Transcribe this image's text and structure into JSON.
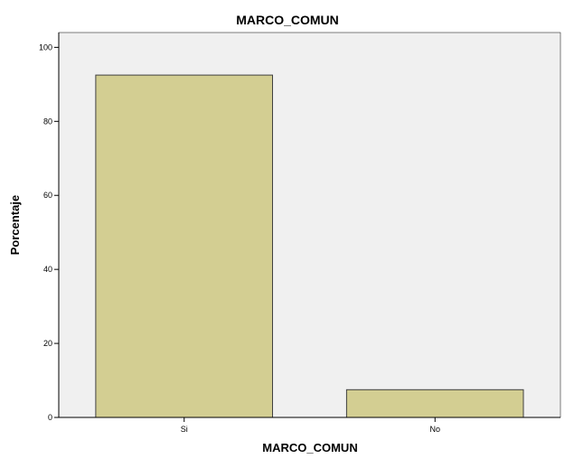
{
  "chart_data": {
    "type": "bar",
    "title": "MARCO_COMUN",
    "xlabel": "MARCO_COMUN",
    "ylabel": "Porcentaje",
    "categories": [
      "Si",
      "No"
    ],
    "values": [
      92.5,
      7.5
    ],
    "ylim": [
      0,
      104
    ],
    "yticks": [
      0,
      20,
      40,
      60,
      80,
      100
    ],
    "grid": false,
    "colors": {
      "bar_fill": "#d3ce92",
      "bar_stroke": "#404040",
      "plot_background": "#f0f0f0",
      "axis": "#000000"
    }
  }
}
